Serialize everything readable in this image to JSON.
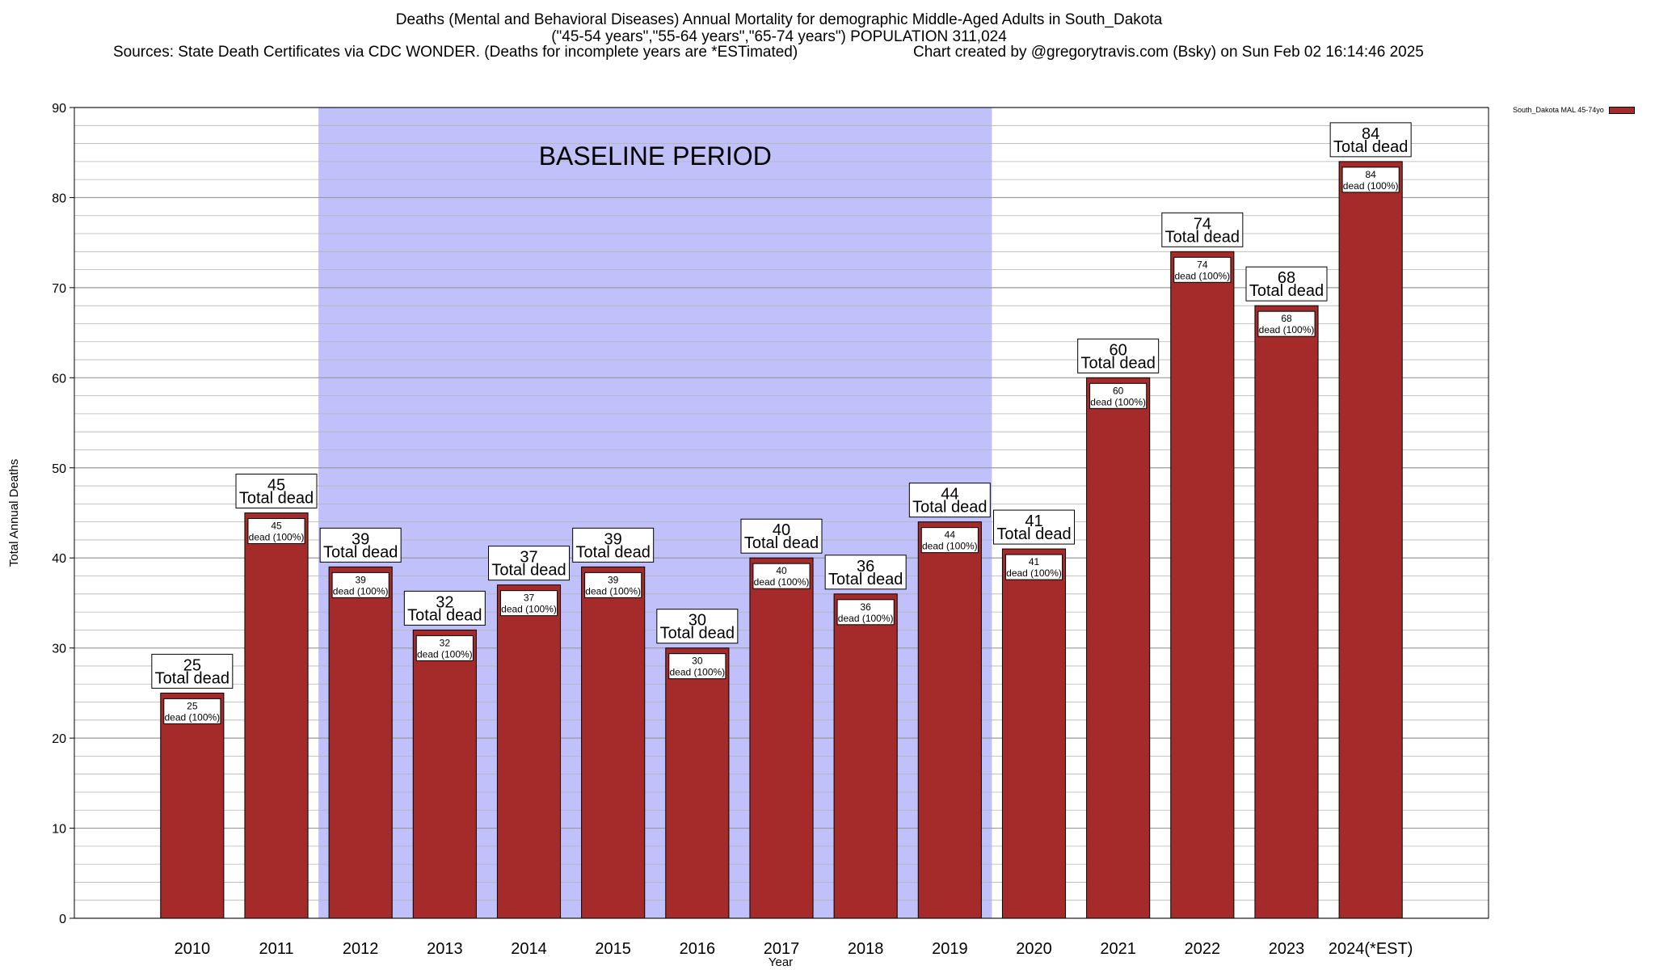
{
  "title_line1": "Deaths (Mental and Behavioral Diseases) Annual Mortality for demographic Middle-Aged Adults in South_Dakota",
  "title_line2": "(\"45-54 years\",\"55-64 years\",\"65-74 years\") POPULATION 311,024",
  "sources": "Sources: State Death Certificates via CDC WONDER. (Deaths for incomplete years are *ESTimated)",
  "credit": "Chart created by @gregorytravis.com (Bsky) on Sun Feb 02 16:14:46 2025",
  "colors": {
    "bar": "#a52a2a",
    "baseline": "#c0c0fa",
    "grid": "#b4b4b4"
  },
  "chart_data": {
    "type": "bar",
    "xlabel": "Year",
    "ylabel": "Total Annual Deaths",
    "ylim": [
      0,
      90
    ],
    "yticks": [
      0,
      10,
      20,
      30,
      40,
      50,
      60,
      70,
      80,
      90
    ],
    "categories": [
      "2010",
      "2011",
      "2012",
      "2013",
      "2014",
      "2015",
      "2016",
      "2017",
      "2018",
      "2019",
      "2020",
      "2021",
      "2022",
      "2023",
      "2024(*EST)"
    ],
    "series": [
      {
        "name": "South_Dakota MAL 45-74yo",
        "values": [
          25,
          45,
          39,
          32,
          37,
          39,
          30,
          40,
          36,
          44,
          41,
          60,
          74,
          68,
          84
        ]
      }
    ],
    "total_label_text": "Total dead",
    "inner_label_text": "dead (100%)",
    "baseline": {
      "label": "BASELINE PERIOD",
      "from": "2012",
      "to": "2019"
    },
    "grid": true,
    "legend_position": "top-right"
  }
}
